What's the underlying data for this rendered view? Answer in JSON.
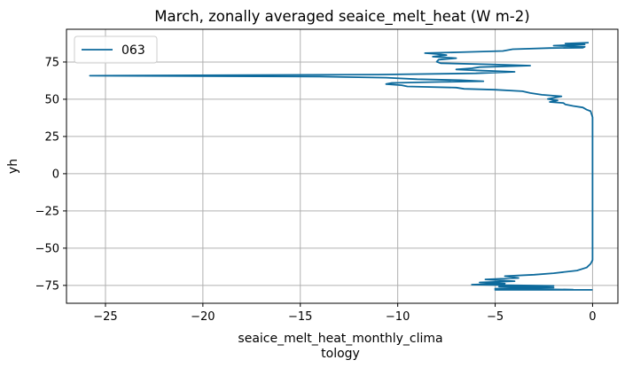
{
  "chart_data": {
    "type": "line",
    "title": "March, zonally averaged seaice_melt_heat (W m-2)",
    "xlabel_lines": [
      "seaice_melt_heat_monthly_clima",
      "tology"
    ],
    "ylabel": "yh",
    "xlim": [
      -27,
      1.3
    ],
    "ylim": [
      -87,
      97
    ],
    "xticks": [
      -25,
      -20,
      -15,
      -10,
      -5,
      0
    ],
    "xtick_labels": [
      "−25",
      "−20",
      "−15",
      "−10",
      "−5",
      "0"
    ],
    "yticks": [
      -75,
      -50,
      -25,
      0,
      25,
      50,
      75
    ],
    "ytick_labels": [
      "−75",
      "−50",
      "−25",
      "0",
      "25",
      "50",
      "75"
    ],
    "grid": true,
    "legend_position": "top-left",
    "colors": {
      "line": "#0d6a9c",
      "grid": "#b0b0b0",
      "axes": "#000000"
    },
    "series": [
      {
        "name": "063",
        "points": [
          [
            0.0,
            -78
          ],
          [
            -5.0,
            -78
          ],
          [
            -1.0,
            -77.8
          ],
          [
            -5.0,
            -77.2
          ],
          [
            -2.0,
            -76.5
          ],
          [
            -4.8,
            -75.8
          ],
          [
            -2.0,
            -75.3
          ],
          [
            -6.2,
            -74.5
          ],
          [
            -4.5,
            -73.8
          ],
          [
            -5.8,
            -73.0
          ],
          [
            -4.0,
            -72.2
          ],
          [
            -5.5,
            -71.0
          ],
          [
            -3.8,
            -70.0
          ],
          [
            -4.5,
            -68.8
          ],
          [
            -3.0,
            -67.8
          ],
          [
            -2.0,
            -66.8
          ],
          [
            -0.8,
            -65.0
          ],
          [
            -0.3,
            -63.0
          ],
          [
            -0.1,
            -60.5
          ],
          [
            0.0,
            -58.0
          ],
          [
            0.0,
            -50.0
          ],
          [
            0.0,
            -25.0
          ],
          [
            0.0,
            0.0
          ],
          [
            0.0,
            25.0
          ],
          [
            0.0,
            38.0
          ],
          [
            -0.1,
            42.0
          ],
          [
            -0.3,
            43.0
          ],
          [
            -0.5,
            44.5
          ],
          [
            -1.0,
            45.5
          ],
          [
            -1.4,
            46.5
          ],
          [
            -1.5,
            47.5
          ],
          [
            -2.2,
            48.2
          ],
          [
            -1.8,
            49.2
          ],
          [
            -2.3,
            50.2
          ],
          [
            -1.9,
            51.2
          ],
          [
            -1.6,
            52.0
          ],
          [
            -2.6,
            53.0
          ],
          [
            -3.2,
            54.2
          ],
          [
            -3.6,
            55.4
          ],
          [
            -5.0,
            56.4
          ],
          [
            -6.6,
            57.0
          ],
          [
            -7.0,
            57.8
          ],
          [
            -9.5,
            58.6
          ],
          [
            -9.8,
            59.4
          ],
          [
            -10.6,
            60.2
          ],
          [
            -10.3,
            61.0
          ],
          [
            -7.8,
            61.6
          ],
          [
            -5.6,
            62.1
          ],
          [
            -6.8,
            62.8
          ],
          [
            -9.0,
            63.5
          ],
          [
            -10.6,
            64.5
          ],
          [
            -14.0,
            65.2
          ],
          [
            -25.8,
            65.8
          ],
          [
            -11.0,
            66.6
          ],
          [
            -6.0,
            67.4
          ],
          [
            -4.0,
            68.4
          ],
          [
            -5.6,
            69.2
          ],
          [
            -7.0,
            70.0
          ],
          [
            -6.2,
            70.8
          ],
          [
            -5.8,
            71.6
          ],
          [
            -3.2,
            72.6
          ],
          [
            -5.2,
            73.4
          ],
          [
            -7.8,
            74.2
          ],
          [
            -8.0,
            75.2
          ],
          [
            -7.9,
            76.6
          ],
          [
            -7.0,
            77.6
          ],
          [
            -8.2,
            78.6
          ],
          [
            -7.5,
            79.6
          ],
          [
            -8.0,
            80.4
          ],
          [
            -8.6,
            81.0
          ],
          [
            -6.8,
            81.6
          ],
          [
            -4.6,
            82.4
          ],
          [
            -4.1,
            83.6
          ],
          [
            -2.2,
            84.4
          ],
          [
            -0.5,
            84.6
          ],
          [
            -0.4,
            85.2
          ],
          [
            -2.0,
            86.0
          ],
          [
            -0.4,
            86.8
          ],
          [
            -1.4,
            87.4
          ],
          [
            -0.2,
            88.0
          ]
        ]
      }
    ]
  }
}
